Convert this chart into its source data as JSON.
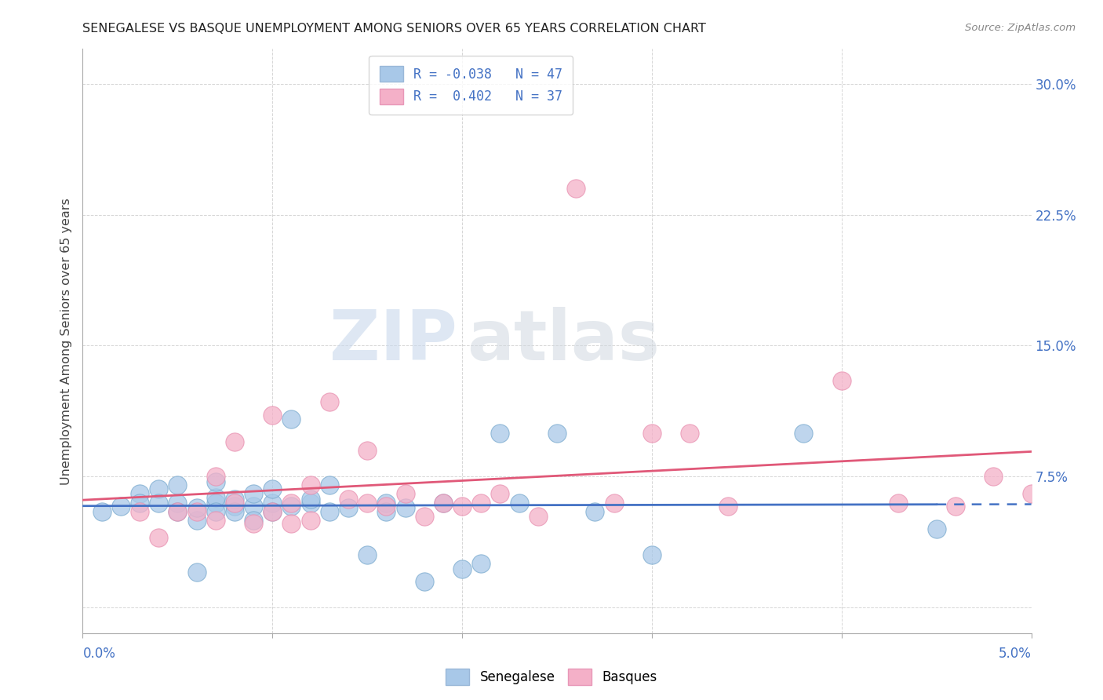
{
  "title": "SENEGALESE VS BASQUE UNEMPLOYMENT AMONG SENIORS OVER 65 YEARS CORRELATION CHART",
  "source": "Source: ZipAtlas.com",
  "ylabel": "Unemployment Among Seniors over 65 years",
  "xmin": 0.0,
  "xmax": 0.05,
  "ymin": -0.015,
  "ymax": 0.32,
  "yticks_right": [
    0.075,
    0.15,
    0.225,
    0.3
  ],
  "ytick_labels_right": [
    "7.5%",
    "15.0%",
    "22.5%",
    "30.0%"
  ],
  "right_axis_color": "#4472c4",
  "blue_color": "#a8c8e8",
  "pink_color": "#f4b0c8",
  "blue_line_color": "#4472c4",
  "pink_line_color": "#e05878",
  "senegalese_x": [
    0.001,
    0.002,
    0.003,
    0.003,
    0.004,
    0.004,
    0.005,
    0.005,
    0.005,
    0.006,
    0.006,
    0.006,
    0.007,
    0.007,
    0.007,
    0.007,
    0.008,
    0.008,
    0.008,
    0.009,
    0.009,
    0.009,
    0.01,
    0.01,
    0.01,
    0.011,
    0.011,
    0.012,
    0.012,
    0.013,
    0.013,
    0.014,
    0.015,
    0.016,
    0.016,
    0.017,
    0.018,
    0.019,
    0.02,
    0.021,
    0.022,
    0.023,
    0.025,
    0.027,
    0.03,
    0.038,
    0.045
  ],
  "senegalese_y": [
    0.055,
    0.058,
    0.065,
    0.06,
    0.068,
    0.06,
    0.06,
    0.055,
    0.07,
    0.02,
    0.05,
    0.057,
    0.06,
    0.063,
    0.055,
    0.072,
    0.058,
    0.062,
    0.055,
    0.058,
    0.065,
    0.05,
    0.06,
    0.068,
    0.055,
    0.058,
    0.108,
    0.06,
    0.062,
    0.055,
    0.07,
    0.057,
    0.03,
    0.06,
    0.055,
    0.057,
    0.015,
    0.06,
    0.022,
    0.025,
    0.1,
    0.06,
    0.1,
    0.055,
    0.03,
    0.1,
    0.045
  ],
  "basque_x": [
    0.003,
    0.004,
    0.005,
    0.006,
    0.007,
    0.007,
    0.008,
    0.008,
    0.009,
    0.01,
    0.01,
    0.011,
    0.011,
    0.012,
    0.012,
    0.013,
    0.014,
    0.015,
    0.015,
    0.016,
    0.017,
    0.018,
    0.019,
    0.02,
    0.021,
    0.022,
    0.024,
    0.026,
    0.028,
    0.03,
    0.032,
    0.034,
    0.04,
    0.043,
    0.046,
    0.048,
    0.05
  ],
  "basque_y": [
    0.055,
    0.04,
    0.055,
    0.055,
    0.05,
    0.075,
    0.06,
    0.095,
    0.048,
    0.055,
    0.11,
    0.06,
    0.048,
    0.07,
    0.05,
    0.118,
    0.062,
    0.06,
    0.09,
    0.058,
    0.065,
    0.052,
    0.06,
    0.058,
    0.06,
    0.065,
    0.052,
    0.24,
    0.06,
    0.1,
    0.1,
    0.058,
    0.13,
    0.06,
    0.058,
    0.075,
    0.065
  ],
  "watermark_zip_color": "#c8d8ec",
  "watermark_atlas_color": "#d0d8e0",
  "background_color": "#ffffff",
  "grid_color": "#cccccc"
}
